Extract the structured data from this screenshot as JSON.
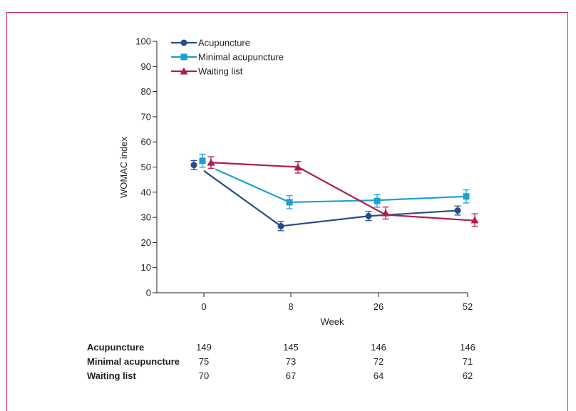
{
  "chart_data": {
    "type": "line",
    "xlabel": "Week",
    "ylabel": "WOMAC index",
    "ylim": [
      0,
      100
    ],
    "yticks": [
      0,
      10,
      20,
      30,
      40,
      50,
      60,
      70,
      80,
      90,
      100
    ],
    "categories": [
      "0",
      "8",
      "26",
      "52"
    ],
    "legend_position": "top-left",
    "error_bars": true,
    "series": [
      {
        "name": "Acupuncture",
        "color": "#264a8c",
        "marker": "circle",
        "values": [
          50.8,
          26.5,
          30.5,
          32.7
        ],
        "error": [
          1.8,
          1.8,
          1.8,
          1.8
        ],
        "line": [
          48.5,
          26.5,
          30.5,
          32.7
        ]
      },
      {
        "name": "Minimal acupuncture",
        "color": "#1aa1cf",
        "marker": "square",
        "values": [
          52.5,
          36.0,
          36.5,
          38.3
        ],
        "error": [
          2.6,
          2.6,
          2.5,
          2.6
        ],
        "line": [
          49.2,
          36.0,
          36.8,
          38.3
        ]
      },
      {
        "name": "Waiting list",
        "color": "#b01c52",
        "marker": "triangle",
        "values": [
          51.8,
          49.9,
          31.7,
          28.9
        ],
        "error": [
          2.3,
          2.3,
          2.4,
          2.5
        ],
        "line": [
          51.8,
          50.0,
          31.0,
          28.7
        ]
      }
    ],
    "number_at_risk": [
      {
        "label": "Acupuncture",
        "counts": [
          "149",
          "145",
          "146",
          "146"
        ]
      },
      {
        "label": "Minimal acupuncture",
        "counts": [
          "75",
          "73",
          "72",
          "71"
        ]
      },
      {
        "label": "Waiting list",
        "counts": [
          "70",
          "67",
          "64",
          "62"
        ]
      }
    ]
  }
}
